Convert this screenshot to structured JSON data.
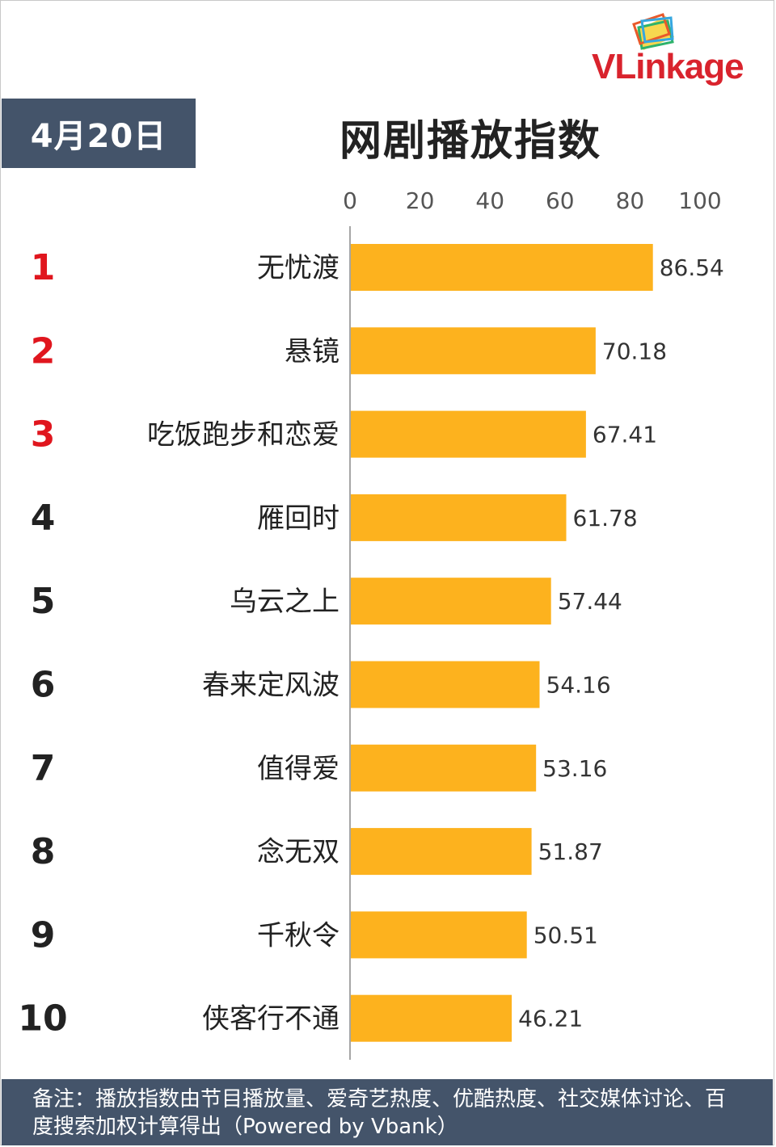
{
  "date_label": "4月20日",
  "logo_text": "VLinkage",
  "colors": {
    "bar": "#fdb21e",
    "rank_top": "#e0161e",
    "rank_default": "#222222",
    "header_bg": "#44546a",
    "axis": "#a6a6a6"
  },
  "chart_data": {
    "type": "bar",
    "orientation": "horizontal",
    "title": "网剧播放指数",
    "categories": [
      "无忧渡",
      "悬镜",
      "吃饭跑步和恋爱",
      "雁回时",
      "乌云之上",
      "春来定风波",
      "值得爱",
      "念无双",
      "千秋令",
      "侠客行不通"
    ],
    "ranks": [
      "1",
      "2",
      "3",
      "4",
      "5",
      "6",
      "7",
      "8",
      "9",
      "10"
    ],
    "values": [
      86.54,
      70.18,
      67.41,
      61.78,
      57.44,
      54.16,
      53.16,
      51.87,
      50.51,
      46.21
    ],
    "value_labels": [
      "86.54",
      "70.18",
      "67.41",
      "61.78",
      "57.44",
      "54.16",
      "53.16",
      "51.87",
      "50.51",
      "46.21"
    ],
    "xlim": [
      0,
      100
    ],
    "xticks": [
      "0",
      "20",
      "40",
      "60",
      "80",
      "100"
    ],
    "xtick_values": [
      0,
      20,
      40,
      60,
      80,
      100
    ],
    "axis_position": "top",
    "grid": false,
    "legend": "none"
  },
  "footer": {
    "note": "备注：播放指数由节目播放量、爱奇艺热度、优酷热度、社交媒体讨论、百度搜索加权计算得出（Powered by Vbank）"
  }
}
